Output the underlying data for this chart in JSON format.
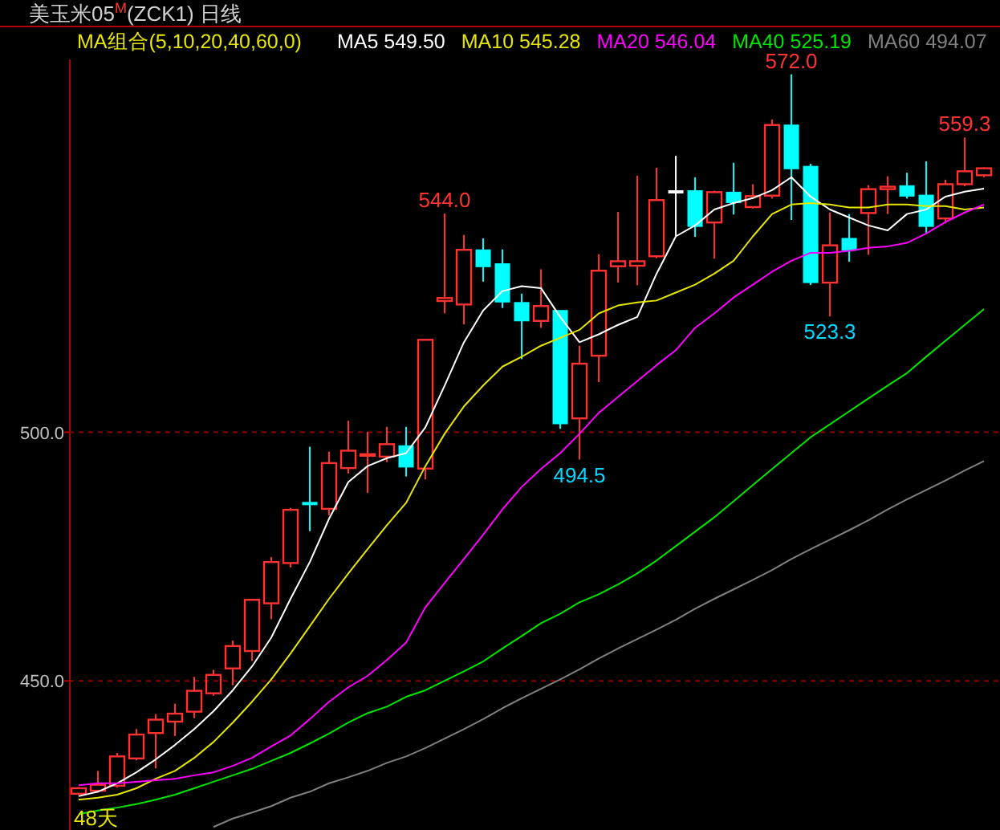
{
  "chart_data": {
    "type": "candlestick",
    "title": "美玉米05$^{M}$(ZCK1)  日线",
    "subtitle": "MA组合(5,10,20,40,60,0)",
    "categories": [
      null,
      null,
      null,
      null,
      null,
      null,
      null,
      null,
      null,
      null,
      null,
      null,
      null,
      null,
      null,
      null,
      null,
      null,
      null,
      null,
      null,
      null,
      null,
      null,
      null,
      null,
      null,
      null,
      null,
      null,
      null,
      null,
      null,
      null,
      null,
      null,
      null,
      null,
      null,
      null,
      null,
      null,
      null,
      null,
      null,
      null,
      null,
      null
    ],
    "ohlc": [
      [
        427.3,
        428.6,
        427.0,
        428.4
      ],
      [
        427.9,
        431.9,
        427.5,
        429.1
      ],
      [
        428.9,
        435.5,
        428.5,
        434.8
      ],
      [
        434.4,
        440.3,
        434.0,
        439.2
      ],
      [
        439.5,
        443.3,
        432.4,
        442.2
      ],
      [
        441.8,
        445.4,
        438.9,
        443.4
      ],
      [
        443.8,
        450.8,
        442.5,
        448.0
      ],
      [
        447.5,
        452.2,
        447.0,
        451.2
      ],
      [
        452.5,
        458.1,
        449.1,
        457.0
      ],
      [
        456.0,
        466.5,
        454.0,
        466.3
      ],
      [
        465.6,
        474.9,
        462.4,
        473.9
      ],
      [
        473.7,
        484.8,
        472.8,
        484.4
      ],
      [
        485.9,
        497.1,
        480.1,
        485.5
      ],
      [
        484.6,
        496.1,
        483.3,
        493.8
      ],
      [
        492.8,
        502.3,
        491.7,
        496.3
      ],
      [
        495.4,
        500.1,
        487.8,
        495.6
      ],
      [
        495.1,
        501.1,
        494.0,
        497.6
      ],
      [
        497.3,
        501.1,
        491.1,
        493.0
      ],
      [
        492.7,
        518.6,
        490.5,
        518.6
      ],
      [
        526.4,
        544.0,
        523.9,
        527.0
      ],
      [
        525.7,
        539.7,
        521.7,
        536.7
      ],
      [
        536.7,
        539.0,
        530.3,
        533.3
      ],
      [
        533.9,
        536.8,
        525.0,
        526.2
      ],
      [
        526.1,
        527.9,
        514.7,
        522.4
      ],
      [
        522.4,
        532.8,
        521.0,
        525.4
      ],
      [
        524.5,
        524.5,
        500.7,
        501.7
      ],
      [
        502.8,
        517.4,
        494.5,
        513.8
      ],
      [
        515.4,
        535.8,
        510.1,
        532.5
      ],
      [
        533.4,
        544.3,
        530.1,
        534.4
      ],
      [
        533.5,
        551.6,
        529.6,
        534.4
      ],
      [
        535.4,
        553.2,
        535.0,
        546.7
      ],
      [
        548.6,
        555.6,
        539.5,
        548.6
      ],
      [
        548.6,
        551.3,
        539.3,
        541.4
      ],
      [
        542.2,
        548.6,
        534.9,
        548.3
      ],
      [
        548.3,
        554.2,
        543.8,
        546.2
      ],
      [
        545.3,
        549.9,
        545.0,
        547.5
      ],
      [
        547.6,
        562.9,
        547.0,
        561.8
      ],
      [
        561.8,
        572.0,
        542.7,
        553.0
      ],
      [
        553.5,
        554.0,
        529.6,
        530.1
      ],
      [
        530.1,
        544.2,
        523.3,
        537.6
      ],
      [
        539.0,
        543.9,
        534.3,
        536.6
      ],
      [
        544.1,
        549.7,
        535.7,
        548.9
      ],
      [
        548.9,
        551.5,
        543.9,
        549.4
      ],
      [
        549.6,
        552.2,
        547.0,
        547.5
      ],
      [
        547.7,
        554.5,
        540.0,
        541.4
      ],
      [
        543.0,
        550.8,
        542.0,
        549.9
      ],
      [
        549.9,
        559.3,
        549.5,
        552.5
      ],
      [
        551.7,
        553.3,
        551.3,
        553.1
      ]
    ],
    "colors": [
      "#ff3232",
      "#ff3232",
      "#ff3232",
      "#ff3232",
      "#ff3232",
      "#ff3232",
      "#ff3232",
      "#ff3232",
      "#ff3232",
      "#ff3232",
      "#ff3232",
      "#ff3232",
      "#00ffff",
      "#ff3232",
      "#ff3232",
      "#ff3232",
      "#ff3232",
      "#00ffff",
      "#ff3232",
      "#ff3232",
      "#ff3232",
      "#00ffff",
      "#00ffff",
      "#00ffff",
      "#ff3232",
      "#00ffff",
      "#ff3232",
      "#ff3232",
      "#ff3232",
      "#ff3232",
      "#ff3232",
      "#ffffff",
      "#00ffff",
      "#ff3232",
      "#00ffff",
      "#ff3232",
      "#ff3232",
      "#00ffff",
      "#00ffff",
      "#ff3232",
      "#00ffff",
      "#ff3232",
      "#ff3232",
      "#00ffff",
      "#00ffff",
      "#ff3232",
      "#ff3232",
      "#ff3232"
    ],
    "series": [
      {
        "name": "MA5 549.50",
        "type": "line",
        "color": "#ffffff",
        "values": [
          426.8,
          427.7,
          429.4,
          431.6,
          434.2,
          437.1,
          440.3,
          443.9,
          448.1,
          452.9,
          458.7,
          466.5,
          473.9,
          482.6,
          490.0,
          493.2,
          494.8,
          495.8,
          501.0,
          509.4,
          518.1,
          524.5,
          528.4,
          529.4,
          529.0,
          523.2,
          518.1,
          519.7,
          521.6,
          523.2,
          531.9,
          539.4,
          541.6,
          544.8,
          546.1,
          547.1,
          548.7,
          551.3,
          547.4,
          544.8,
          543.2,
          541.6,
          540.6,
          543.9,
          544.8,
          547.4,
          548.4,
          549.0
        ]
      },
      {
        "name": "MA10 545.28",
        "type": "line",
        "color": "#e6e600",
        "values": [
          426.1,
          426.5,
          427.1,
          428.4,
          430.3,
          431.9,
          434.5,
          437.7,
          441.6,
          445.8,
          450.3,
          455.5,
          461.0,
          466.5,
          471.6,
          476.5,
          481.3,
          485.8,
          493.2,
          499.7,
          505.2,
          509.4,
          513.2,
          515.2,
          517.4,
          519.0,
          520.6,
          523.9,
          525.5,
          526.1,
          526.5,
          528.1,
          529.7,
          531.9,
          534.5,
          539.4,
          543.9,
          545.8,
          546.1,
          545.8,
          545.2,
          545.2,
          545.8,
          545.8,
          545.5,
          545.5,
          544.8,
          545.2
        ]
      },
      {
        "name": "MA20 546.04",
        "type": "line",
        "color": "#ff00ff",
        "values": [
          429.0,
          429.4,
          429.4,
          429.7,
          430.0,
          430.3,
          431.0,
          431.6,
          432.9,
          434.5,
          436.8,
          439.0,
          442.3,
          445.8,
          448.7,
          451.0,
          454.2,
          457.7,
          464.8,
          469.7,
          474.5,
          479.4,
          484.5,
          489.0,
          492.6,
          495.8,
          499.7,
          503.9,
          507.1,
          510.3,
          513.5,
          516.5,
          521.0,
          523.9,
          527.1,
          529.7,
          532.3,
          534.5,
          536.1,
          536.1,
          536.5,
          537.1,
          537.4,
          538.1,
          540.0,
          542.3,
          544.2,
          545.8
        ]
      },
      {
        "name": "MA40 525.19",
        "type": "line",
        "color": "#00e600",
        "values": [
          423.2,
          423.9,
          424.5,
          425.2,
          426.1,
          427.1,
          428.4,
          429.7,
          431.0,
          432.3,
          433.9,
          435.5,
          437.4,
          439.4,
          441.6,
          443.5,
          444.8,
          446.8,
          448.1,
          450.0,
          451.9,
          453.9,
          456.5,
          459.0,
          461.6,
          463.5,
          465.8,
          467.4,
          469.4,
          471.6,
          474.2,
          477.1,
          480.0,
          482.9,
          486.1,
          489.4,
          492.6,
          495.8,
          499.0,
          501.6,
          504.2,
          506.8,
          509.4,
          511.9,
          515.2,
          518.4,
          521.6,
          524.8
        ]
      },
      {
        "name": "MA60 494.07",
        "type": "line",
        "color": "#808080",
        "values": [
          null,
          null,
          null,
          null,
          null,
          null,
          null,
          420.6,
          422.3,
          423.5,
          424.8,
          426.5,
          427.7,
          429.4,
          430.6,
          431.9,
          433.5,
          434.8,
          436.5,
          438.4,
          440.3,
          442.3,
          444.5,
          446.5,
          448.4,
          450.3,
          452.3,
          454.5,
          456.5,
          458.4,
          460.3,
          462.3,
          464.5,
          466.5,
          468.4,
          470.3,
          472.3,
          474.5,
          476.5,
          478.4,
          480.3,
          482.3,
          484.5,
          486.5,
          488.4,
          490.3,
          492.3,
          494.2
        ]
      }
    ],
    "ylim": [
      420,
      575
    ],
    "yticks": [
      {
        "value": 450,
        "label": "450.0"
      },
      {
        "value": 500,
        "label": "500.0"
      }
    ],
    "grid": "y",
    "legend": "top",
    "annotations": [
      {
        "text": "544.0",
        "y": 544.0
      },
      {
        "text": "494.5",
        "y": 494.5
      },
      {
        "text": "572.0",
        "y": 572.0
      },
      {
        "text": "523.3",
        "y": 523.3
      },
      {
        "text": "559.3",
        "y": 559.3
      },
      "48天"
    ]
  }
}
